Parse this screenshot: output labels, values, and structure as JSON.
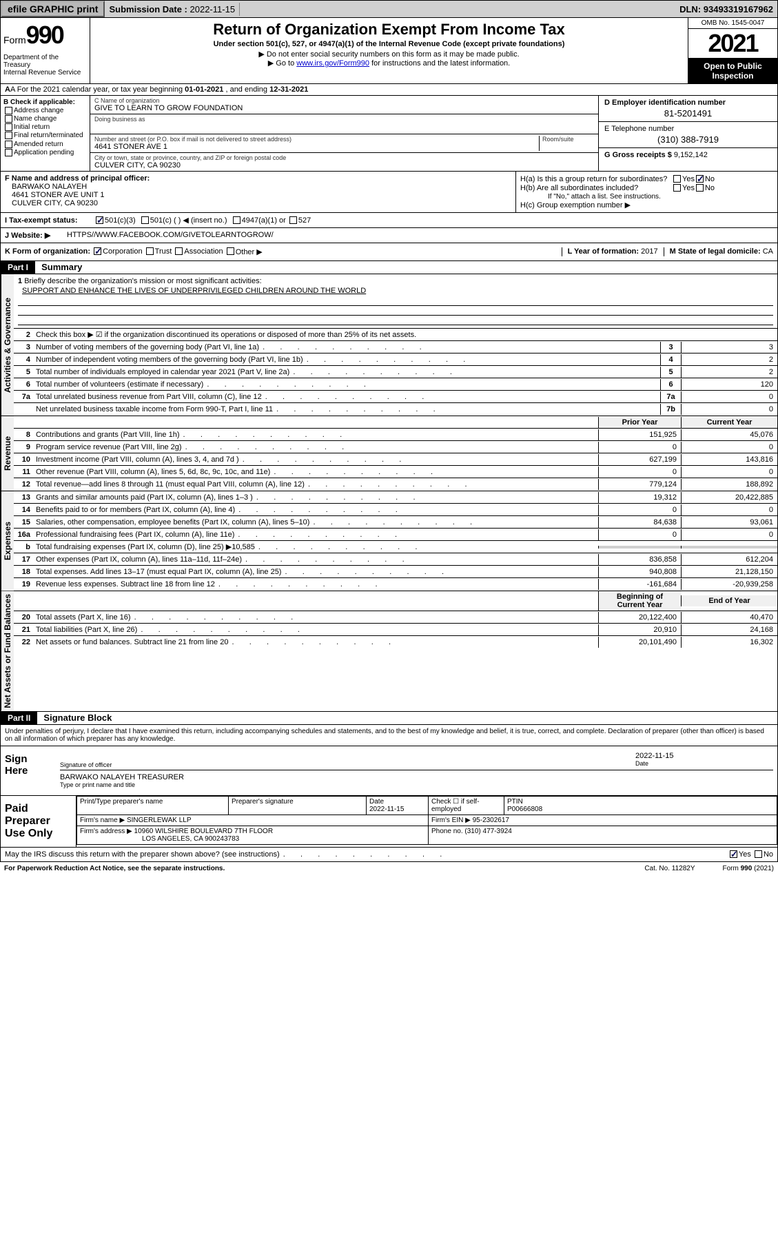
{
  "topbar": {
    "efile": "efile GRAPHIC print",
    "submission_label": "Submission Date :",
    "submission_date": "2022-11-15",
    "dln_label": "DLN:",
    "dln": "93493319167962"
  },
  "header": {
    "form_label": "Form",
    "form_number": "990",
    "title": "Return of Organization Exempt From Income Tax",
    "subtitle": "Under section 501(c), 527, or 4947(a)(1) of the Internal Revenue Code (except private foundations)",
    "note1": "▶ Do not enter social security numbers on this form as it may be made public.",
    "note2_prefix": "▶ Go to ",
    "note2_link": "www.irs.gov/Form990",
    "note2_suffix": " for instructions and the latest information.",
    "dept": "Department of the Treasury\nInternal Revenue Service",
    "omb": "OMB No. 1545-0047",
    "year": "2021",
    "open": "Open to Public Inspection"
  },
  "rowA": {
    "prefix": "A For the 2021 calendar year, or tax year beginning ",
    "begin": "01-01-2021",
    "mid": " , and ending ",
    "end": "12-31-2021"
  },
  "colB": {
    "title": "B Check if applicable:",
    "opts": [
      "Address change",
      "Name change",
      "Initial return",
      "Final return/terminated",
      "Amended return",
      "Application pending"
    ]
  },
  "colC": {
    "name_label": "C Name of organization",
    "name": "GIVE TO LEARN TO GROW FOUNDATION",
    "dba_label": "Doing business as",
    "dba": "",
    "street_label": "Number and street (or P.O. box if mail is not delivered to street address)",
    "room_label": "Room/suite",
    "street": "4641 STONER AVE 1",
    "city_label": "City or town, state or province, country, and ZIP or foreign postal code",
    "city": "CULVER CITY, CA  90230"
  },
  "colD": {
    "ein_label": "D Employer identification number",
    "ein": "81-5201491",
    "phone_label": "E Telephone number",
    "phone": "(310) 388-7919",
    "gross_label": "G Gross receipts $",
    "gross": "9,152,142"
  },
  "rowF": {
    "label": "F Name and address of principal officer:",
    "name": "BARWAKO NALAYEH",
    "addr1": "4641 STONER AVE UNIT 1",
    "addr2": "CULVER CITY, CA  90230"
  },
  "rowH": {
    "ha_label": "H(a)  Is this a group return for subordinates?",
    "hb_label": "H(b)  Are all subordinates included?",
    "hb_note": "If \"No,\" attach a list. See instructions.",
    "hc_label": "H(c)  Group exemption number ▶"
  },
  "rowI": {
    "label": "I  Tax-exempt status:",
    "o1": "501(c)(3)",
    "o2": "501(c) (  ) ◀ (insert no.)",
    "o3": "4947(a)(1) or",
    "o4": "527"
  },
  "rowJ": {
    "label": "J  Website: ▶",
    "value": "HTTPS//WWW.FACEBOOK.COM/GIVETOLEARNTOGROW/"
  },
  "rowK": {
    "label": "K Form of organization:",
    "opts": [
      "Corporation",
      "Trust",
      "Association",
      "Other ▶"
    ],
    "L_label": "L Year of formation:",
    "L_val": "2017",
    "M_label": "M State of legal domicile:",
    "M_val": "CA"
  },
  "part1": {
    "header": "Part I",
    "title": "Summary",
    "q1_label": "Briefly describe the organization's mission or most significant activities:",
    "mission": "SUPPORT AND ENHANCE THE LIVES OF UNDERPRIVILEGED CHILDREN AROUND THE WORLD",
    "q2": "Check this box ▶ ☑ if the organization discontinued its operations or disposed of more than 25% of its net assets.",
    "lines_gov": [
      {
        "n": "3",
        "d": "Number of voting members of the governing body (Part VI, line 1a)",
        "box": "3",
        "v": "3"
      },
      {
        "n": "4",
        "d": "Number of independent voting members of the governing body (Part VI, line 1b)",
        "box": "4",
        "v": "2"
      },
      {
        "n": "5",
        "d": "Total number of individuals employed in calendar year 2021 (Part V, line 2a)",
        "box": "5",
        "v": "2"
      },
      {
        "n": "6",
        "d": "Total number of volunteers (estimate if necessary)",
        "box": "6",
        "v": "120"
      },
      {
        "n": "7a",
        "d": "Total unrelated business revenue from Part VIII, column (C), line 12",
        "box": "7a",
        "v": "0"
      },
      {
        "n": "",
        "d": "Net unrelated business taxable income from Form 990-T, Part I, line 11",
        "box": "7b",
        "v": "0"
      }
    ],
    "col_prior": "Prior Year",
    "col_current": "Current Year",
    "lines_rev": [
      {
        "n": "8",
        "d": "Contributions and grants (Part VIII, line 1h)",
        "p": "151,925",
        "c": "45,076"
      },
      {
        "n": "9",
        "d": "Program service revenue (Part VIII, line 2g)",
        "p": "0",
        "c": "0"
      },
      {
        "n": "10",
        "d": "Investment income (Part VIII, column (A), lines 3, 4, and 7d )",
        "p": "627,199",
        "c": "143,816"
      },
      {
        "n": "11",
        "d": "Other revenue (Part VIII, column (A), lines 5, 6d, 8c, 9c, 10c, and 11e)",
        "p": "0",
        "c": "0"
      },
      {
        "n": "12",
        "d": "Total revenue—add lines 8 through 11 (must equal Part VIII, column (A), line 12)",
        "p": "779,124",
        "c": "188,892"
      }
    ],
    "lines_exp": [
      {
        "n": "13",
        "d": "Grants and similar amounts paid (Part IX, column (A), lines 1–3 )",
        "p": "19,312",
        "c": "20,422,885"
      },
      {
        "n": "14",
        "d": "Benefits paid to or for members (Part IX, column (A), line 4)",
        "p": "0",
        "c": "0"
      },
      {
        "n": "15",
        "d": "Salaries, other compensation, employee benefits (Part IX, column (A), lines 5–10)",
        "p": "84,638",
        "c": "93,061"
      },
      {
        "n": "16a",
        "d": "Professional fundraising fees (Part IX, column (A), line 11e)",
        "p": "0",
        "c": "0"
      },
      {
        "n": "b",
        "d": "Total fundraising expenses (Part IX, column (D), line 25) ▶10,585",
        "p": "",
        "c": "",
        "shaded": true
      },
      {
        "n": "17",
        "d": "Other expenses (Part IX, column (A), lines 11a–11d, 11f–24e)",
        "p": "836,858",
        "c": "612,204"
      },
      {
        "n": "18",
        "d": "Total expenses. Add lines 13–17 (must equal Part IX, column (A), line 25)",
        "p": "940,808",
        "c": "21,128,150"
      },
      {
        "n": "19",
        "d": "Revenue less expenses. Subtract line 18 from line 12",
        "p": "-161,684",
        "c": "-20,939,258"
      }
    ],
    "col_begin": "Beginning of Current Year",
    "col_end": "End of Year",
    "lines_net": [
      {
        "n": "20",
        "d": "Total assets (Part X, line 16)",
        "p": "20,122,400",
        "c": "40,470"
      },
      {
        "n": "21",
        "d": "Total liabilities (Part X, line 26)",
        "p": "20,910",
        "c": "24,168"
      },
      {
        "n": "22",
        "d": "Net assets or fund balances. Subtract line 21 from line 20",
        "p": "20,101,490",
        "c": "16,302"
      }
    ],
    "side_gov": "Activities & Governance",
    "side_rev": "Revenue",
    "side_exp": "Expenses",
    "side_net": "Net Assets or Fund Balances"
  },
  "part2": {
    "header": "Part II",
    "title": "Signature Block",
    "declare": "Under penalties of perjury, I declare that I have examined this return, including accompanying schedules and statements, and to the best of my knowledge and belief, it is true, correct, and complete. Declaration of preparer (other than officer) is based on all information of which preparer has any knowledge.",
    "sign_here": "Sign Here",
    "sig_officer_label": "Signature of officer",
    "sig_date_label": "Date",
    "sig_date": "2022-11-15",
    "sig_name": "BARWAKO NALAYEH  TREASURER",
    "sig_name_label": "Type or print name and title",
    "paid_label": "Paid Preparer Use Only",
    "prep_name_label": "Print/Type preparer's name",
    "prep_sig_label": "Preparer's signature",
    "prep_date_label": "Date",
    "prep_date": "2022-11-15",
    "prep_check_label": "Check ☐ if self-employed",
    "ptin_label": "PTIN",
    "ptin": "P00666808",
    "firm_name_label": "Firm's name    ▶",
    "firm_name": "SINGERLEWAK LLP",
    "firm_ein_label": "Firm's EIN ▶",
    "firm_ein": "95-2302617",
    "firm_addr_label": "Firm's address ▶",
    "firm_addr1": "10960 WILSHIRE BOULEVARD 7TH FLOOR",
    "firm_addr2": "LOS ANGELES, CA  900243783",
    "firm_phone_label": "Phone no.",
    "firm_phone": "(310) 477-3924",
    "discuss": "May the IRS discuss this return with the preparer shown above? (see instructions)"
  },
  "footer": {
    "pra": "For Paperwork Reduction Act Notice, see the separate instructions.",
    "cat": "Cat. No. 11282Y",
    "form": "Form 990 (2021)"
  }
}
